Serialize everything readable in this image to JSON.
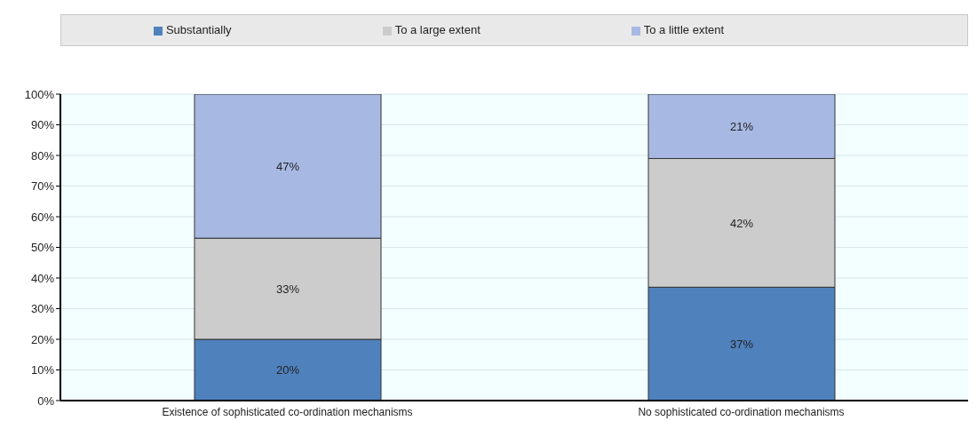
{
  "chart_data": {
    "type": "bar",
    "stacked": true,
    "categories": [
      "Existence of sophisticated co-ordination mechanisms",
      "No sophisticated co-ordination mechanisms"
    ],
    "series": [
      {
        "name": "Substantially",
        "color": "#4f81bd",
        "values": [
          20,
          37
        ],
        "value_labels": [
          "20%",
          "37%"
        ]
      },
      {
        "name": "To a large extent",
        "color": "#cccccc",
        "values": [
          33,
          42
        ],
        "value_labels": [
          "33%",
          "42%"
        ]
      },
      {
        "name": "To a little extent",
        "color": "#a7b9e3",
        "values": [
          47,
          21
        ],
        "value_labels": [
          "47%",
          "21%"
        ]
      }
    ],
    "ylim": [
      0,
      100
    ],
    "yticks": [
      {
        "value": 0,
        "label": "0%"
      },
      {
        "value": 10,
        "label": "10%"
      },
      {
        "value": 20,
        "label": "20%"
      },
      {
        "value": 30,
        "label": "30%"
      },
      {
        "value": 40,
        "label": "40%"
      },
      {
        "value": 50,
        "label": "50%"
      },
      {
        "value": 60,
        "label": "60%"
      },
      {
        "value": 70,
        "label": "70%"
      },
      {
        "value": 80,
        "label": "80%"
      },
      {
        "value": 90,
        "label": "90%"
      },
      {
        "value": 100,
        "label": "100%"
      }
    ],
    "grid": "y",
    "legend": "top"
  }
}
